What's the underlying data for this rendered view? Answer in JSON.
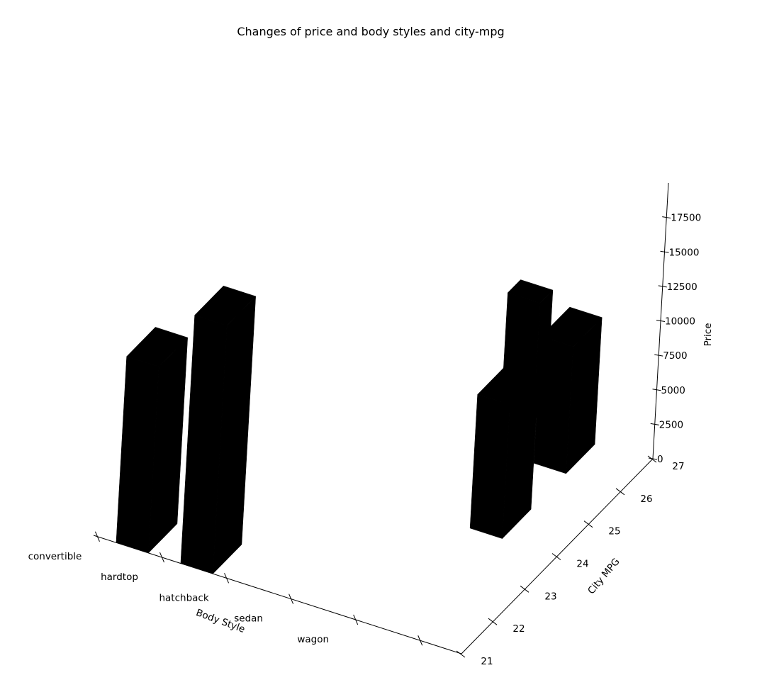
{
  "chart_data": {
    "type": "bar3d",
    "title": "Changes of price and body styles and city-mpg",
    "xlabel": "Body Style",
    "ylabel": "City MPG",
    "zlabel": "Price",
    "x_categories": [
      "convertible",
      "hardtop",
      "hatchback",
      "sedan",
      "wagon"
    ],
    "y_ticks": [
      "21",
      "22",
      "23",
      "24",
      "25",
      "26",
      "27"
    ],
    "z_ticks": [
      "0",
      "2500",
      "5000",
      "7500",
      "10000",
      "12500",
      "15000",
      "17500"
    ],
    "ylim": [
      21,
      27
    ],
    "zlim": [
      0,
      20000
    ],
    "bar_color": "#000000",
    "bars": [
      {
        "body_style": "convertible",
        "city_mpg": 21,
        "price": 13500
      },
      {
        "body_style": "hardtop",
        "city_mpg": 21,
        "price": 18000
      },
      {
        "body_style": "sedan",
        "city_mpg": 27,
        "price": 8500
      },
      {
        "body_style": "wagon",
        "city_mpg": 26,
        "price": 9200
      },
      {
        "body_style": "wagon",
        "city_mpg": 24,
        "price": 9700
      }
    ]
  }
}
